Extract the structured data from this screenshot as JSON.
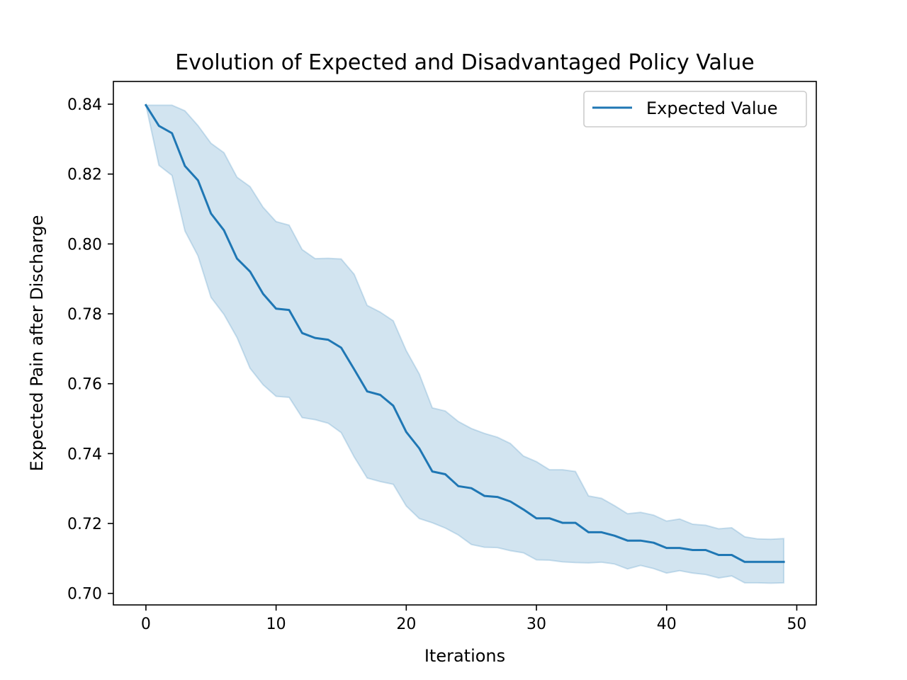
{
  "chart_data": {
    "type": "line",
    "title": "Evolution of Expected and Disadvantaged Policy Value",
    "xlabel": "Iterations",
    "ylabel": "Expected Pain after Discharge",
    "xlim": [
      -2.5,
      51.5
    ],
    "ylim": [
      0.6967,
      0.8465
    ],
    "x_ticks": [
      0,
      10,
      20,
      30,
      40,
      50
    ],
    "y_ticks": [
      0.7,
      0.72,
      0.74,
      0.76,
      0.78,
      0.8,
      0.82,
      0.84
    ],
    "x_tick_labels": [
      "0",
      "10",
      "20",
      "30",
      "40",
      "50"
    ],
    "y_tick_labels": [
      "0.70",
      "0.72",
      "0.74",
      "0.76",
      "0.78",
      "0.80",
      "0.82",
      "0.84"
    ],
    "grid": false,
    "legend_position": "upper-right",
    "legend": [
      "Expected Value"
    ],
    "line_color": "#1f77b4",
    "band_color": "#1f77b4",
    "x": [
      0,
      1,
      2,
      3,
      4,
      5,
      6,
      7,
      8,
      9,
      10,
      11,
      12,
      13,
      14,
      15,
      16,
      17,
      18,
      19,
      20,
      21,
      22,
      23,
      24,
      25,
      26,
      27,
      28,
      29,
      30,
      31,
      32,
      33,
      34,
      35,
      36,
      37,
      38,
      39,
      40,
      41,
      42,
      43,
      44,
      45,
      46,
      47,
      48,
      49
    ],
    "series": [
      {
        "name": "Expected Value",
        "values": [
          0.8397,
          0.8338,
          0.8317,
          0.8223,
          0.8182,
          0.8087,
          0.8039,
          0.7958,
          0.7921,
          0.7857,
          0.7815,
          0.7811,
          0.7745,
          0.7731,
          0.7726,
          0.7703,
          0.7641,
          0.7578,
          0.7568,
          0.7537,
          0.7462,
          0.7415,
          0.7349,
          0.7341,
          0.7307,
          0.7301,
          0.7279,
          0.7276,
          0.7263,
          0.724,
          0.7215,
          0.7215,
          0.7202,
          0.7202,
          0.7175,
          0.7175,
          0.7165,
          0.7151,
          0.7151,
          0.7145,
          0.713,
          0.713,
          0.7124,
          0.7124,
          0.711,
          0.711,
          0.709,
          0.709,
          0.709,
          0.709
        ]
      }
    ],
    "band": {
      "upper": [
        0.8397,
        0.8397,
        0.8397,
        0.8381,
        0.8339,
        0.8288,
        0.8261,
        0.8191,
        0.8164,
        0.8105,
        0.8064,
        0.8054,
        0.7984,
        0.7958,
        0.7959,
        0.7957,
        0.7913,
        0.7824,
        0.7805,
        0.778,
        0.7695,
        0.7628,
        0.7531,
        0.7522,
        0.7492,
        0.7472,
        0.7458,
        0.7447,
        0.7429,
        0.7393,
        0.7377,
        0.7354,
        0.7354,
        0.7349,
        0.7279,
        0.7272,
        0.7251,
        0.7228,
        0.7232,
        0.7224,
        0.7207,
        0.7213,
        0.7198,
        0.7195,
        0.7185,
        0.7188,
        0.7162,
        0.7156,
        0.7155,
        0.7157
      ],
      "lower": [
        0.8397,
        0.8225,
        0.8196,
        0.8037,
        0.7966,
        0.7847,
        0.7798,
        0.7732,
        0.7644,
        0.7597,
        0.7564,
        0.7561,
        0.7503,
        0.7497,
        0.7487,
        0.746,
        0.739,
        0.733,
        0.732,
        0.7312,
        0.725,
        0.7214,
        0.7202,
        0.7187,
        0.7167,
        0.714,
        0.7132,
        0.7131,
        0.7122,
        0.7116,
        0.7096,
        0.7095,
        0.709,
        0.7088,
        0.7087,
        0.7089,
        0.7084,
        0.707,
        0.708,
        0.7071,
        0.7058,
        0.7065,
        0.7058,
        0.7054,
        0.7044,
        0.705,
        0.703,
        0.703,
        0.7029,
        0.703
      ]
    }
  }
}
